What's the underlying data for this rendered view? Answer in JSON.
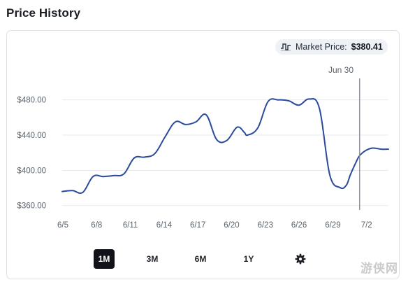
{
  "page": {
    "title": "Price History"
  },
  "market_price": {
    "label": "Market Price:",
    "value": "$380.41"
  },
  "hover": {
    "date": "Jun 30"
  },
  "range_buttons": [
    {
      "label": "1M",
      "active": true
    },
    {
      "label": "3M",
      "active": false
    },
    {
      "label": "6M",
      "active": false
    },
    {
      "label": "1Y",
      "active": false
    }
  ],
  "settings": {
    "icon": "gear-icon"
  },
  "watermark": {
    "text": "游侠网"
  },
  "colors": {
    "line": "#2a4a9c",
    "hover_line": "#8a8f96",
    "grid": "#e7eaee",
    "active_button": "#111318"
  },
  "chart_data": {
    "type": "line",
    "title": "Price History",
    "xlabel": "",
    "ylabel": "",
    "x_ticks": [
      "6/5",
      "6/8",
      "6/11",
      "6/14",
      "6/17",
      "6/20",
      "6/23",
      "6/26",
      "6/29",
      "7/2"
    ],
    "y_ticks": [
      "$360.00",
      "$400.00",
      "$440.00",
      "$480.00"
    ],
    "ylim": [
      355,
      498
    ],
    "xlim": [
      0,
      31.7
    ],
    "grid": "horizontal",
    "series": [
      {
        "name": "",
        "x": [
          0,
          1,
          2,
          3,
          4,
          5,
          6,
          7,
          8,
          9,
          10,
          11,
          12,
          13,
          14,
          15,
          16,
          17,
          17.7,
          18,
          19,
          20,
          21,
          22,
          23,
          24,
          25,
          26,
          27,
          27.6,
          28,
          28.5,
          29,
          30,
          31,
          31.7
        ],
        "y": [
          376,
          377,
          375,
          393,
          393,
          394,
          396,
          414,
          415,
          419,
          438,
          455,
          452,
          455,
          463,
          435,
          434,
          449,
          443,
          440,
          448,
          478,
          480,
          479,
          474,
          481,
          470,
          395,
          380.41,
          383,
          395,
          408,
          418,
          425,
          424,
          424
        ]
      }
    ],
    "hover_x": 28.9
  }
}
